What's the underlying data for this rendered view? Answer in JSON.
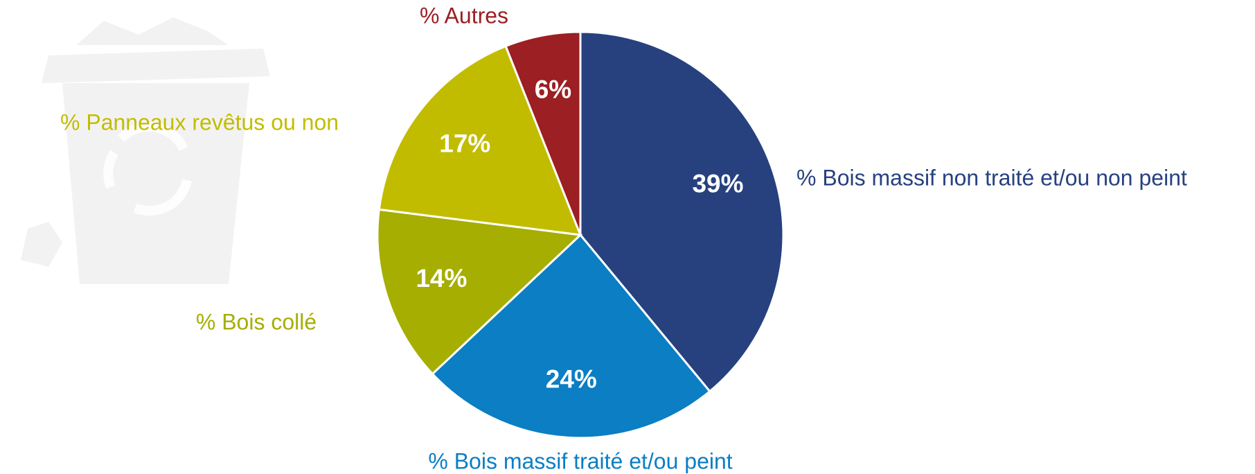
{
  "chart_data": {
    "type": "pie",
    "categories": [
      "% Bois massif non traité et/ou non peint",
      "% Bois massif traité et/ou peint",
      "% Bois collé",
      "% Panneaux revêtus ou non",
      "% Autres"
    ],
    "values": [
      39,
      24,
      14,
      17,
      6
    ],
    "value_labels": [
      "39%",
      "24%",
      "14%",
      "17%",
      "6%"
    ],
    "colors": [
      "#27417f",
      "#0b7ec4",
      "#a5ae01",
      "#c2bc00",
      "#9b1f23"
    ]
  }
}
